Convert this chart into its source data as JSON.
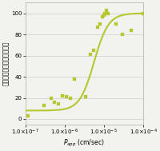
{
  "scatter_x": [
    1.2e-07,
    3e-07,
    4.5e-07,
    5.5e-07,
    7e-07,
    9e-07,
    1.1e-06,
    1.4e-06,
    1.8e-06,
    3.5e-06,
    4.5e-06,
    5.5e-06,
    7e-06,
    8e-06,
    9e-06,
    1e-05,
    1.05e-05,
    1.15e-05,
    1.3e-05,
    2e-05,
    3e-05,
    5e-05,
    0.0001
  ],
  "scatter_y": [
    3,
    13,
    20,
    16,
    14,
    22,
    21,
    20,
    38,
    21,
    61,
    65,
    87,
    90,
    97,
    98,
    100,
    103,
    100,
    90,
    80,
    84,
    100
  ],
  "scatter_color": "#b5c830",
  "scatter_marker": "s",
  "scatter_size": 6,
  "curve_color": "#b5c830",
  "curve_lw": 1.5,
  "ylabel": "人体における吸収率（％）",
  "xlabel_main": "P",
  "xlabel_sub": "app",
  "xlabel_unit": " (cm/sec)",
  "xlim_log": [
    -7,
    -4
  ],
  "ylim": [
    -5,
    110
  ],
  "yticks": [
    0,
    20,
    40,
    60,
    80,
    100
  ],
  "bg_color": "#f2f2ee",
  "grid_color": "#cccccc",
  "label_fontsize": 5.5,
  "tick_fontsize": 5.0,
  "curve_ymin": 8,
  "curve_ymax": 100,
  "curve_k": 5.5,
  "curve_x0": -5.25
}
